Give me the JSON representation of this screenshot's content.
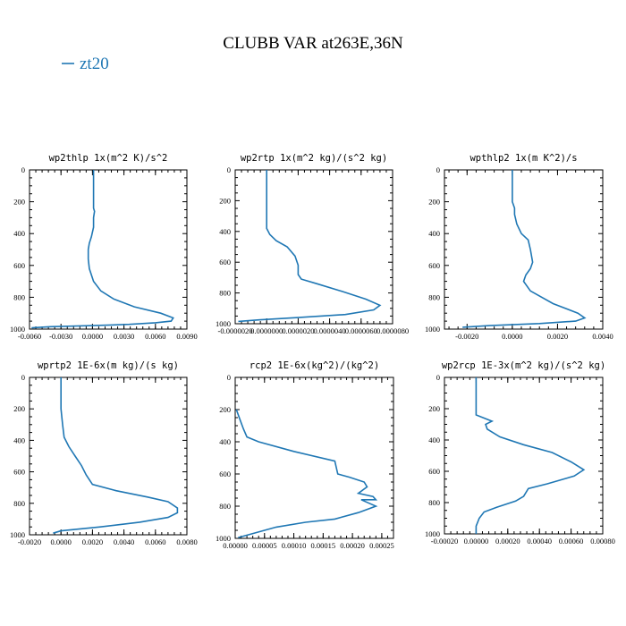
{
  "title": "CLUBB VAR at263E,36N",
  "legend": {
    "label": "zt20",
    "color": "#1f77b4"
  },
  "chart_data": [
    {
      "type": "line",
      "title": "wp2thlp  1x(m^2 K)/s^2",
      "xlim": [
        -0.006,
        0.009
      ],
      "xticks": [
        -0.006,
        -0.003,
        0.0,
        0.003,
        0.006,
        0.009
      ],
      "xtick_labels": [
        "-0.0060",
        "-0.0030",
        "0.0000",
        "0.0030",
        "0.0060",
        "0.0090"
      ],
      "ylim": [
        0,
        1000
      ],
      "yticks": [
        0,
        200,
        400,
        600,
        800,
        1000
      ],
      "ytick_labels": [
        "0",
        "200",
        "400",
        "600",
        "800",
        "1000"
      ],
      "series": [
        {
          "x": [
            0.0001,
            0.0001,
            0.0001,
            0.0001,
            0.0002,
            0.0001,
            0.0001,
            -0.0001,
            -0.0003,
            -0.0004,
            -0.0004,
            -0.0003,
            0.0001,
            0.0008,
            0.002,
            0.004,
            0.0065,
            0.0077,
            0.0075,
            0.006,
            0.0035,
            0.0,
            -0.004,
            -0.0058
          ],
          "y": [
            0,
            100,
            200,
            240,
            260,
            300,
            360,
            420,
            460,
            500,
            560,
            620,
            700,
            760,
            810,
            860,
            900,
            930,
            950,
            960,
            970,
            978,
            985,
            992
          ]
        }
      ]
    },
    {
      "type": "line",
      "title": "wp2rtp  1x(m^2 kg)/(s^2 kg)",
      "xlim": [
        -2e-06,
        8e-06
      ],
      "xticks": [
        -2e-06,
        0.0,
        2e-06,
        4e-06,
        6e-06,
        8e-06
      ],
      "xtick_labels": [
        "-0.0000020",
        "0.0000000",
        "0.0000020",
        "0.0000040",
        "0.0000060",
        "0.0000080"
      ],
      "ylim": [
        0,
        1000
      ],
      "yticks": [
        0,
        200,
        400,
        600,
        800,
        1000
      ],
      "ytick_labels": [
        "0",
        "200",
        "400",
        "600",
        "800",
        "1000"
      ],
      "series": [
        {
          "x": [
            0.0,
            0.0,
            0.0,
            0.0,
            0.0,
            0.0,
            0.0,
            2e-07,
            6e-07,
            1.3e-06,
            1.8e-06,
            2e-06,
            2e-06,
            2.2e-06,
            3.2e-06,
            4.8e-06,
            6.3e-06,
            7.2e-06,
            6.8e-06,
            5e-06,
            2e-06,
            -5e-07,
            -1.8e-06
          ],
          "y": [
            0,
            100,
            200,
            260,
            300,
            340,
            380,
            420,
            460,
            500,
            560,
            620,
            680,
            710,
            740,
            790,
            840,
            880,
            910,
            940,
            960,
            975,
            985
          ]
        }
      ]
    },
    {
      "type": "line",
      "title": "wpthlp2  1x(m K^2)/s",
      "xlim": [
        -0.003,
        0.004
      ],
      "xticks": [
        -0.002,
        0.0,
        0.002,
        0.004
      ],
      "xtick_labels": [
        "-0.0020",
        "0.0000",
        "0.0020",
        "0.0040"
      ],
      "ylim": [
        0,
        1000
      ],
      "yticks": [
        0,
        200,
        400,
        600,
        800,
        1000
      ],
      "ytick_labels": [
        "0",
        "200",
        "400",
        "600",
        "800",
        "1000"
      ],
      "series": [
        {
          "x": [
            0.0,
            0.0,
            0.0,
            0.0001,
            0.0001,
            0.0002,
            0.0004,
            0.0007,
            0.0008,
            0.0009,
            0.0008,
            0.0006,
            0.0005,
            0.0008,
            0.0018,
            0.0029,
            0.0032,
            0.0028,
            0.0012,
            -0.001,
            -0.0022
          ],
          "y": [
            0,
            100,
            200,
            240,
            280,
            340,
            400,
            440,
            500,
            580,
            620,
            660,
            700,
            760,
            840,
            900,
            930,
            950,
            965,
            978,
            988
          ]
        }
      ]
    },
    {
      "type": "line",
      "title": "wprtp2  1E-6x(m kg)/(s kg)",
      "xlim": [
        -0.002,
        0.008
      ],
      "xticks": [
        -0.002,
        0.0,
        0.002,
        0.004,
        0.006,
        0.008
      ],
      "xtick_labels": [
        "-0.0020",
        "0.0000",
        "0.0020",
        "0.0040",
        "0.0060",
        "0.0080"
      ],
      "ylim": [
        0,
        1000
      ],
      "yticks": [
        0,
        200,
        400,
        600,
        800,
        1000
      ],
      "ytick_labels": [
        "0",
        "200",
        "400",
        "600",
        "800",
        "1000"
      ],
      "series": [
        {
          "x": [
            0.0,
            0.0,
            0.0,
            0.0001,
            0.0002,
            0.0005,
            0.0009,
            0.0013,
            0.0016,
            0.002,
            0.0035,
            0.0055,
            0.0068,
            0.0074,
            0.0074,
            0.0068,
            0.005,
            0.0025,
            0.0,
            -0.0005
          ],
          "y": [
            0,
            100,
            200,
            300,
            380,
            440,
            500,
            560,
            620,
            680,
            720,
            760,
            790,
            830,
            860,
            890,
            920,
            950,
            975,
            990
          ]
        }
      ]
    },
    {
      "type": "line",
      "title": "rcp2  1E-6x(kg^2)/(kg^2)",
      "xlim": [
        0,
        0.00027
      ],
      "xticks": [
        0.0,
        5e-05,
        0.0001,
        0.00015,
        0.0002,
        0.00025
      ],
      "xtick_labels": [
        "0.00000",
        "0.00005",
        "0.00010",
        "0.00015",
        "0.00020",
        "0.00025"
      ],
      "ylim": [
        0,
        1000
      ],
      "yticks": [
        0,
        200,
        400,
        600,
        800,
        1000
      ],
      "ytick_labels": [
        "0",
        "200",
        "400",
        "600",
        "800",
        "1000"
      ],
      "series": [
        {
          "x": [
            2e-06,
            8e-06,
            1.4e-05,
            2e-05,
            4e-05,
            0.0001,
            0.00017,
            0.000175,
            0.000195,
            0.00022,
            0.000225,
            0.00021,
            0.000235,
            0.00024,
            0.000215,
            0.00024,
            0.00021,
            0.00017,
            0.00012,
            7e-05,
            3e-05,
            5e-06
          ],
          "y": [
            200,
            260,
            320,
            370,
            400,
            460,
            520,
            600,
            620,
            650,
            680,
            720,
            740,
            760,
            760,
            800,
            840,
            880,
            900,
            930,
            970,
            995
          ]
        }
      ]
    },
    {
      "type": "line",
      "title": "wp2rcp  1E-3x(m^2 kg)/(s^2 kg)",
      "xlim": [
        -0.0002,
        0.0008
      ],
      "xticks": [
        -0.0002,
        0.0,
        0.0002,
        0.0004,
        0.0006,
        0.0008
      ],
      "xtick_labels": [
        "-0.00020",
        "0.00000",
        "0.00020",
        "0.00040",
        "0.00060",
        "0.00080"
      ],
      "ylim": [
        0,
        1000
      ],
      "yticks": [
        0,
        200,
        400,
        600,
        800,
        1000
      ],
      "ytick_labels": [
        "0",
        "200",
        "400",
        "600",
        "800",
        "1000"
      ],
      "series": [
        {
          "x": [
            0.0,
            0.0,
            0.0,
            0.0,
            5e-05,
            0.0001,
            6e-05,
            7e-05,
            0.00015,
            0.0003,
            0.00048,
            0.0006,
            0.00068,
            0.00062,
            0.00045,
            0.00033,
            0.0003,
            0.00025,
            0.00013,
            5e-05,
            2e-05,
            0.0,
            0.0
          ],
          "y": [
            0,
            100,
            200,
            240,
            260,
            280,
            300,
            330,
            380,
            430,
            480,
            540,
            590,
            630,
            680,
            710,
            760,
            790,
            830,
            860,
            900,
            950,
            1000
          ]
        }
      ]
    }
  ]
}
